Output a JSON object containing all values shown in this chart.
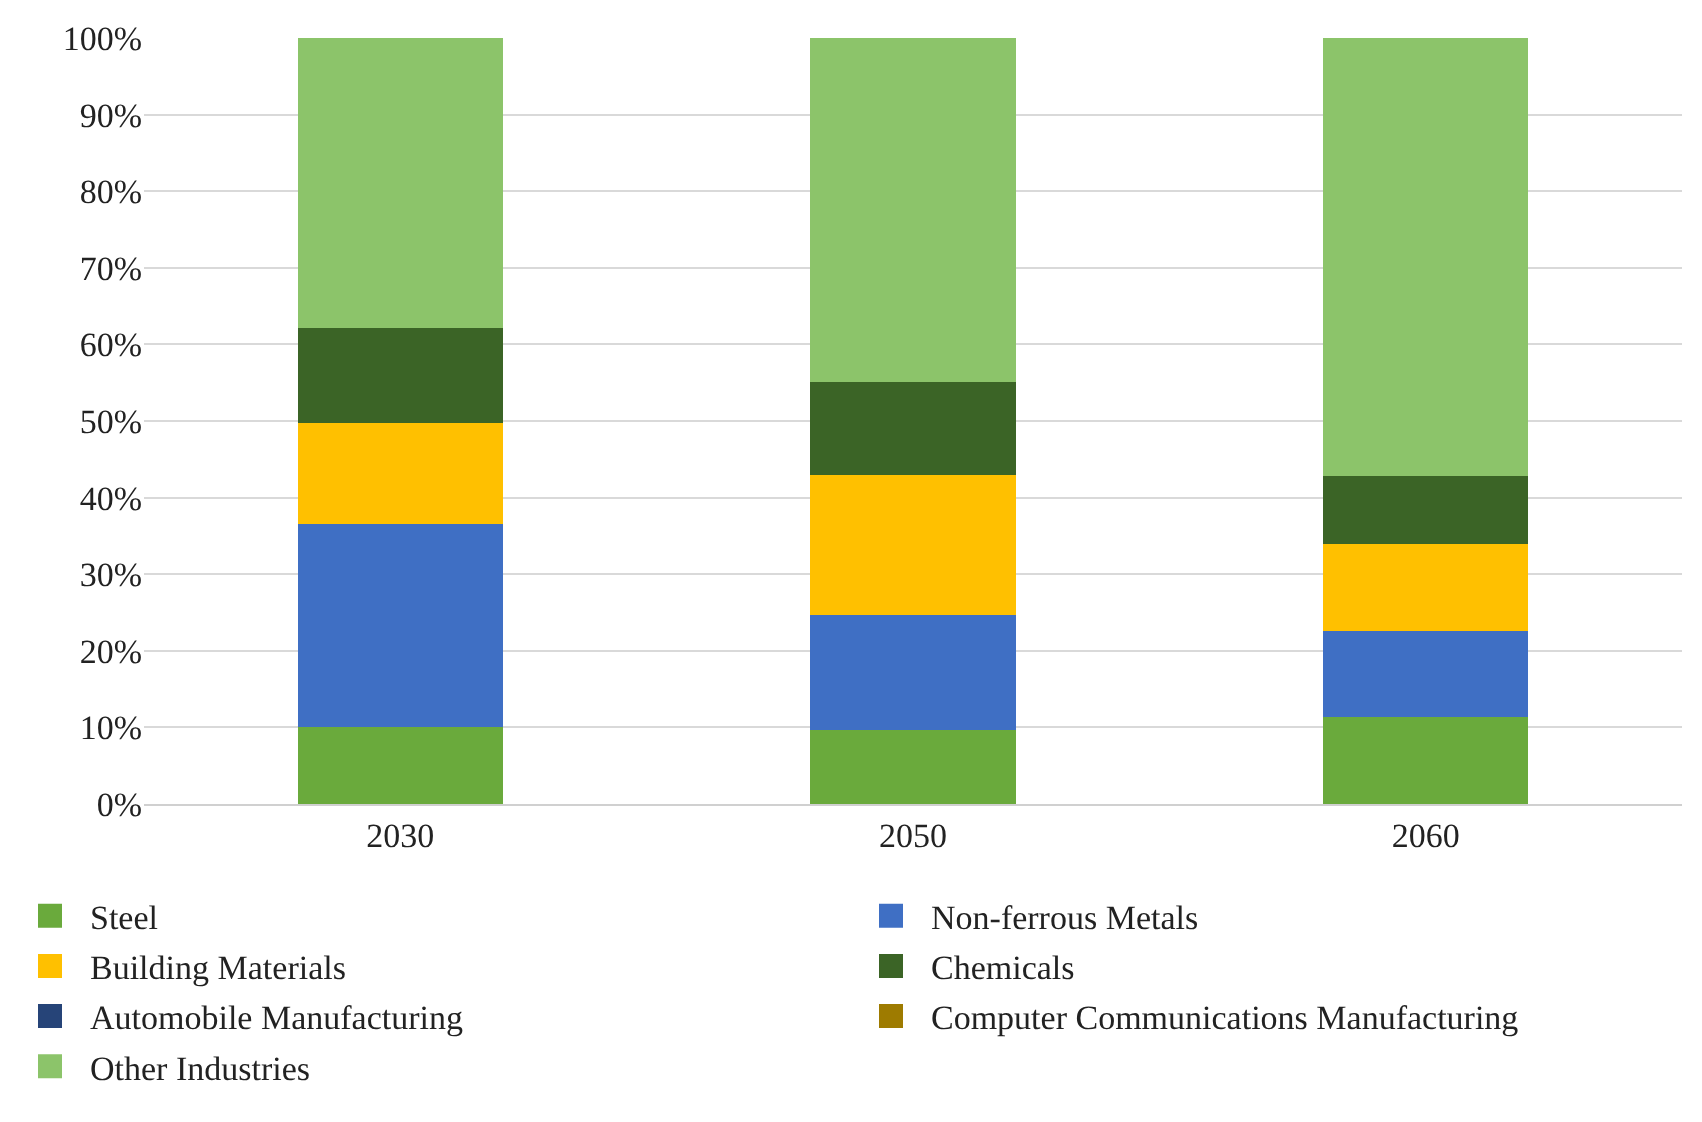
{
  "chart_data": {
    "type": "bar",
    "stacked": true,
    "categories": [
      "2030",
      "2050",
      "2060"
    ],
    "series": [
      {
        "name": "Steel",
        "color": "#6aaa3c",
        "values": [
          10,
          9.7,
          11.4
        ]
      },
      {
        "name": "Non-ferrous Metals",
        "color": "#3f6fc4",
        "values": [
          26.6,
          15,
          11.2
        ]
      },
      {
        "name": "Building Materials",
        "color": "#ffc000",
        "values": [
          13.1,
          18.2,
          11.3
        ]
      },
      {
        "name": "Chemicals",
        "color": "#3b6426",
        "values": [
          12.4,
          12.2,
          8.9
        ]
      },
      {
        "name": "Automobile Manufacturing",
        "color": "#264478",
        "values": [
          0,
          0,
          0
        ]
      },
      {
        "name": "Computer Communications Manufacturing",
        "color": "#9e7b00",
        "values": [
          0,
          0,
          0
        ]
      },
      {
        "name": "Other Industries",
        "color": "#8cc46a",
        "values": [
          37.9,
          44.9,
          57.2
        ]
      }
    ],
    "ylim": [
      0,
      100
    ],
    "yticks": [
      {
        "value": 0,
        "label": "0%"
      },
      {
        "value": 10,
        "label": "10%"
      },
      {
        "value": 20,
        "label": "20%"
      },
      {
        "value": 30,
        "label": "30%"
      },
      {
        "value": 40,
        "label": "40%"
      },
      {
        "value": 50,
        "label": "50%"
      },
      {
        "value": 60,
        "label": "60%"
      },
      {
        "value": 70,
        "label": "70%"
      },
      {
        "value": 80,
        "label": "80%"
      },
      {
        "value": 90,
        "label": "90%"
      },
      {
        "value": 100,
        "label": "100%"
      }
    ],
    "grid": "y",
    "legend": "bottom"
  }
}
